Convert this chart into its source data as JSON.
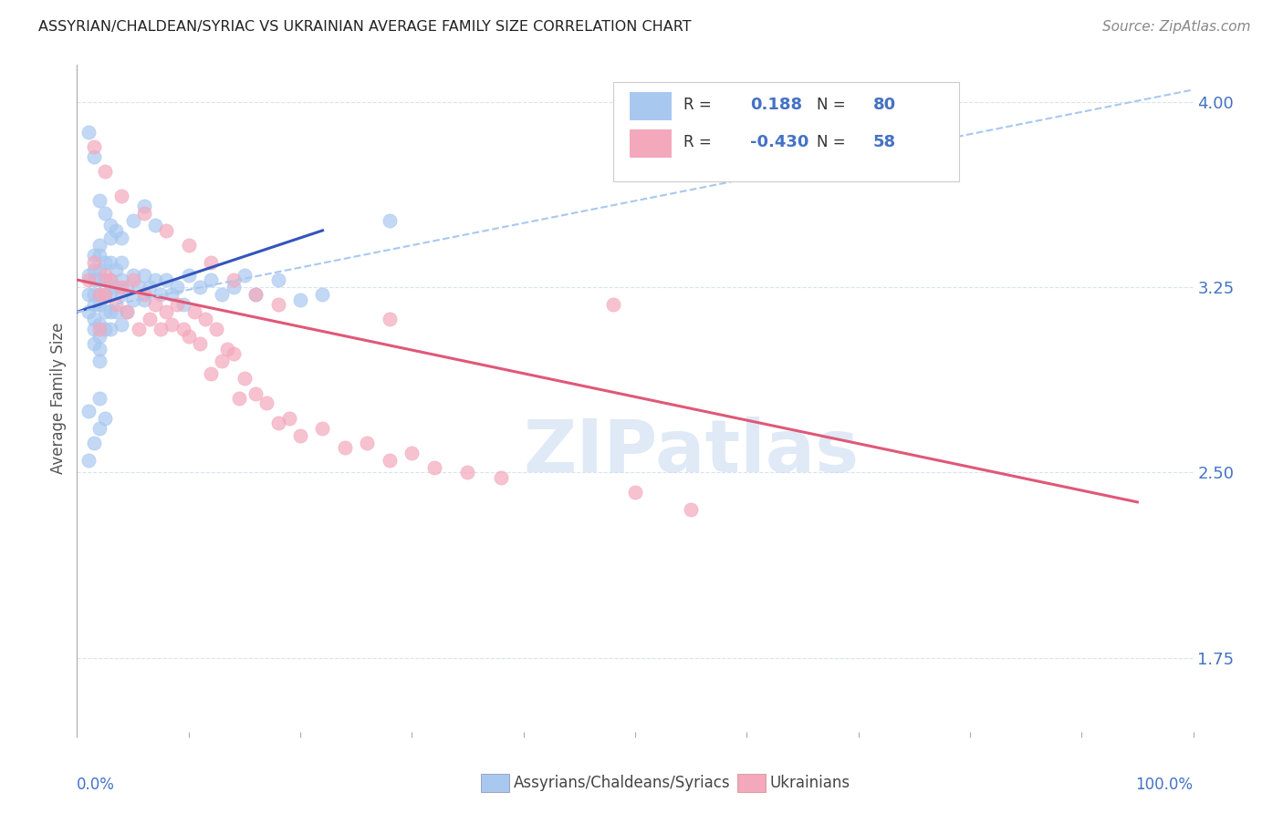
{
  "title": "ASSYRIAN/CHALDEAN/SYRIAC VS UKRAINIAN AVERAGE FAMILY SIZE CORRELATION CHART",
  "source": "Source: ZipAtlas.com",
  "ylabel": "Average Family Size",
  "yticks": [
    1.75,
    2.5,
    3.25,
    4.0
  ],
  "xlim": [
    0.0,
    1.0
  ],
  "ylim": [
    1.45,
    4.15
  ],
  "blue_color": "#A8C8F0",
  "pink_color": "#F4A8BC",
  "blue_line_color": "#3355BB",
  "pink_line_color": "#E05878",
  "blue_dashed_color": "#A8C8F0",
  "axis_color": "#4472C4",
  "watermark_color": "#C8D8F0",
  "grid_color": "#D8E4F0",
  "plot_bg": "#FFFFFF",
  "fig_bg": "#FFFFFF",
  "blue_scatter_x": [
    0.01,
    0.01,
    0.01,
    0.015,
    0.015,
    0.015,
    0.015,
    0.015,
    0.015,
    0.015,
    0.015,
    0.02,
    0.02,
    0.02,
    0.02,
    0.02,
    0.02,
    0.02,
    0.02,
    0.02,
    0.02,
    0.025,
    0.025,
    0.025,
    0.025,
    0.025,
    0.03,
    0.03,
    0.03,
    0.03,
    0.03,
    0.035,
    0.035,
    0.035,
    0.04,
    0.04,
    0.04,
    0.04,
    0.045,
    0.045,
    0.05,
    0.05,
    0.055,
    0.06,
    0.06,
    0.065,
    0.07,
    0.075,
    0.08,
    0.085,
    0.09,
    0.095,
    0.1,
    0.11,
    0.12,
    0.13,
    0.14,
    0.15,
    0.16,
    0.18,
    0.2,
    0.22,
    0.01,
    0.01,
    0.015,
    0.02,
    0.025,
    0.03,
    0.035,
    0.04,
    0.05,
    0.06,
    0.01,
    0.015,
    0.02,
    0.02,
    0.025,
    0.03,
    0.07,
    0.28
  ],
  "blue_scatter_y": [
    3.3,
    3.22,
    3.15,
    3.38,
    3.32,
    3.28,
    3.22,
    3.18,
    3.12,
    3.08,
    3.02,
    3.42,
    3.38,
    3.32,
    3.28,
    3.22,
    3.18,
    3.1,
    3.05,
    3.0,
    2.95,
    3.35,
    3.28,
    3.22,
    3.15,
    3.08,
    3.35,
    3.28,
    3.22,
    3.15,
    3.08,
    3.32,
    3.25,
    3.15,
    3.35,
    3.28,
    3.22,
    3.1,
    3.25,
    3.15,
    3.3,
    3.2,
    3.25,
    3.3,
    3.2,
    3.25,
    3.28,
    3.22,
    3.28,
    3.22,
    3.25,
    3.18,
    3.3,
    3.25,
    3.28,
    3.22,
    3.25,
    3.3,
    3.22,
    3.28,
    3.2,
    3.22,
    3.88,
    2.55,
    3.78,
    3.6,
    3.55,
    3.5,
    3.48,
    3.45,
    3.52,
    3.58,
    2.75,
    2.62,
    2.8,
    2.68,
    2.72,
    3.45,
    3.5,
    3.52
  ],
  "pink_scatter_x": [
    0.01,
    0.015,
    0.02,
    0.02,
    0.025,
    0.025,
    0.03,
    0.035,
    0.04,
    0.045,
    0.05,
    0.055,
    0.06,
    0.065,
    0.07,
    0.075,
    0.08,
    0.085,
    0.09,
    0.095,
    0.1,
    0.105,
    0.11,
    0.115,
    0.12,
    0.125,
    0.13,
    0.135,
    0.14,
    0.145,
    0.15,
    0.16,
    0.17,
    0.18,
    0.19,
    0.2,
    0.22,
    0.24,
    0.26,
    0.28,
    0.3,
    0.35,
    0.5,
    0.55,
    0.38,
    0.32,
    0.015,
    0.025,
    0.04,
    0.06,
    0.08,
    0.1,
    0.12,
    0.14,
    0.16,
    0.18,
    0.28,
    0.48
  ],
  "pink_scatter_y": [
    3.28,
    3.35,
    3.22,
    3.08,
    3.3,
    3.22,
    3.28,
    3.18,
    3.25,
    3.15,
    3.28,
    3.08,
    3.22,
    3.12,
    3.18,
    3.08,
    3.15,
    3.1,
    3.18,
    3.08,
    3.05,
    3.15,
    3.02,
    3.12,
    2.9,
    3.08,
    2.95,
    3.0,
    2.98,
    2.8,
    2.88,
    2.82,
    2.78,
    2.7,
    2.72,
    2.65,
    2.68,
    2.6,
    2.62,
    2.55,
    2.58,
    2.5,
    2.42,
    2.35,
    2.48,
    2.52,
    3.82,
    3.72,
    3.62,
    3.55,
    3.48,
    3.42,
    3.35,
    3.28,
    3.22,
    3.18,
    3.12,
    3.18
  ],
  "blue_line_x": [
    0.0,
    0.22
  ],
  "blue_line_y": [
    3.15,
    3.48
  ],
  "blue_dashed_line_x": [
    0.0,
    1.0
  ],
  "blue_dashed_line_y": [
    3.15,
    4.05
  ],
  "pink_line_x": [
    0.0,
    0.95
  ],
  "pink_line_y": [
    3.28,
    2.38
  ],
  "legend_label_blue": "Assyrians/Chaldeans/Syriacs",
  "legend_label_pink": "Ukrainians"
}
